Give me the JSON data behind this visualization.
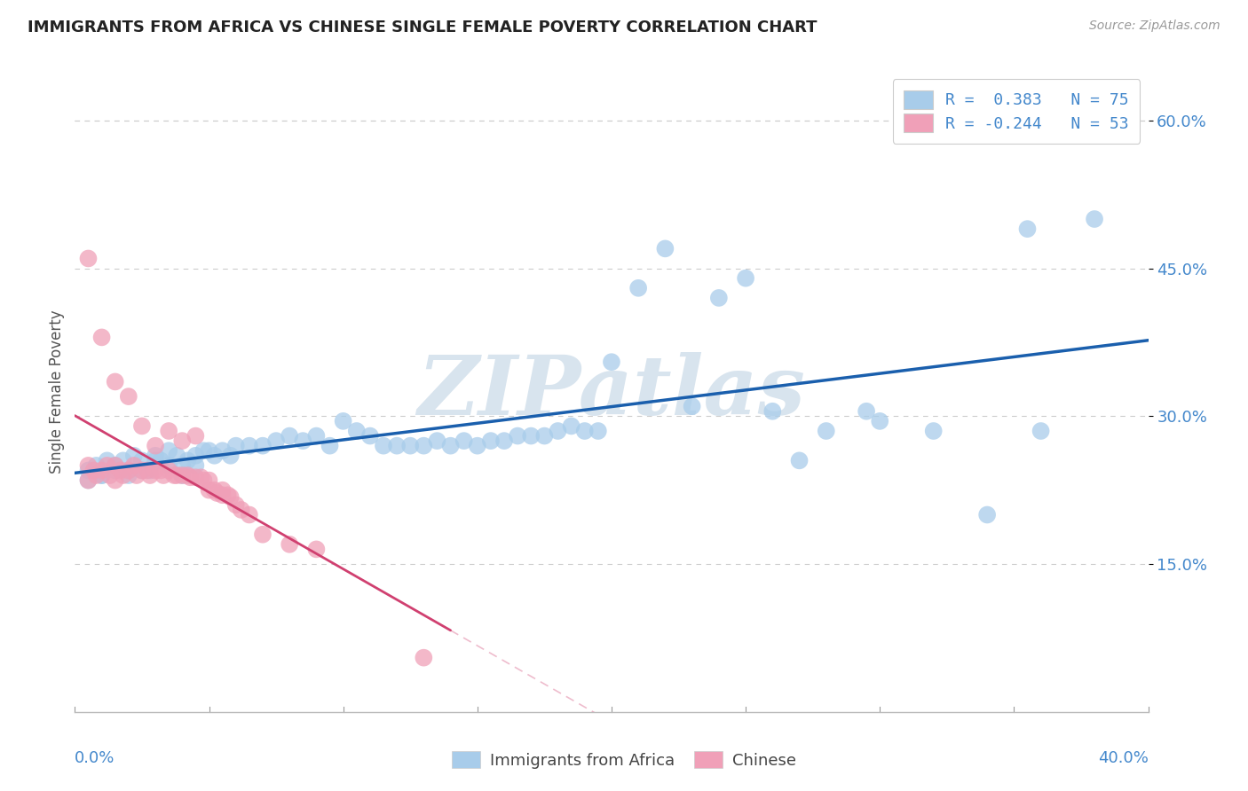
{
  "title": "IMMIGRANTS FROM AFRICA VS CHINESE SINGLE FEMALE POVERTY CORRELATION CHART",
  "source": "Source: ZipAtlas.com",
  "ylabel": "Single Female Poverty",
  "yticks": [
    "15.0%",
    "30.0%",
    "45.0%",
    "60.0%"
  ],
  "ytick_vals": [
    0.15,
    0.3,
    0.45,
    0.6
  ],
  "xlim": [
    0.0,
    0.4
  ],
  "ylim": [
    0.0,
    0.65
  ],
  "africa_R": 0.383,
  "africa_N": 75,
  "chinese_R": -0.244,
  "chinese_N": 53,
  "africa_color": "#A8CCEA",
  "chinese_color": "#F0A0B8",
  "africa_line_color": "#1A5FAD",
  "chinese_line_color": "#D04070",
  "watermark": "ZIPatlas",
  "watermark_color": "#D8E4EE",
  "background_color": "#FFFFFF",
  "grid_color": "#CCCCCC",
  "africa_scatter_x": [
    0.005,
    0.008,
    0.01,
    0.012,
    0.015,
    0.018,
    0.02,
    0.022,
    0.025,
    0.028,
    0.03,
    0.032,
    0.035,
    0.038,
    0.04,
    0.042,
    0.045,
    0.048,
    0.05,
    0.052,
    0.055,
    0.058,
    0.06,
    0.065,
    0.07,
    0.075,
    0.08,
    0.085,
    0.09,
    0.095,
    0.1,
    0.105,
    0.11,
    0.115,
    0.12,
    0.125,
    0.13,
    0.135,
    0.14,
    0.145,
    0.15,
    0.155,
    0.16,
    0.165,
    0.17,
    0.175,
    0.18,
    0.185,
    0.19,
    0.195,
    0.2,
    0.21,
    0.22,
    0.23,
    0.24,
    0.25,
    0.26,
    0.27,
    0.28,
    0.295,
    0.3,
    0.32,
    0.34,
    0.355,
    0.36,
    0.38,
    0.005,
    0.01,
    0.015,
    0.02,
    0.025,
    0.03,
    0.035,
    0.04,
    0.045
  ],
  "africa_scatter_y": [
    0.245,
    0.25,
    0.24,
    0.255,
    0.25,
    0.255,
    0.245,
    0.26,
    0.255,
    0.245,
    0.26,
    0.255,
    0.25,
    0.26,
    0.25,
    0.255,
    0.26,
    0.265,
    0.265,
    0.26,
    0.265,
    0.26,
    0.27,
    0.27,
    0.27,
    0.275,
    0.28,
    0.275,
    0.28,
    0.27,
    0.295,
    0.285,
    0.28,
    0.27,
    0.27,
    0.27,
    0.27,
    0.275,
    0.27,
    0.275,
    0.27,
    0.275,
    0.275,
    0.28,
    0.28,
    0.28,
    0.285,
    0.29,
    0.285,
    0.285,
    0.355,
    0.43,
    0.47,
    0.31,
    0.42,
    0.44,
    0.305,
    0.255,
    0.285,
    0.305,
    0.295,
    0.285,
    0.2,
    0.49,
    0.285,
    0.5,
    0.235,
    0.24,
    0.245,
    0.24,
    0.245,
    0.255,
    0.265,
    0.24,
    0.25
  ],
  "chinese_scatter_x": [
    0.005,
    0.005,
    0.005,
    0.007,
    0.008,
    0.01,
    0.01,
    0.012,
    0.013,
    0.015,
    0.015,
    0.015,
    0.017,
    0.018,
    0.02,
    0.02,
    0.022,
    0.023,
    0.025,
    0.025,
    0.027,
    0.028,
    0.03,
    0.03,
    0.032,
    0.033,
    0.035,
    0.035,
    0.037,
    0.038,
    0.04,
    0.04,
    0.042,
    0.043,
    0.045,
    0.045,
    0.047,
    0.048,
    0.05,
    0.05,
    0.052,
    0.053,
    0.055,
    0.055,
    0.057,
    0.058,
    0.06,
    0.062,
    0.065,
    0.07,
    0.08,
    0.09,
    0.13
  ],
  "chinese_scatter_y": [
    0.46,
    0.25,
    0.235,
    0.245,
    0.24,
    0.38,
    0.245,
    0.25,
    0.24,
    0.335,
    0.25,
    0.235,
    0.245,
    0.24,
    0.32,
    0.245,
    0.25,
    0.24,
    0.29,
    0.245,
    0.245,
    0.24,
    0.27,
    0.245,
    0.245,
    0.24,
    0.285,
    0.245,
    0.24,
    0.24,
    0.275,
    0.24,
    0.24,
    0.238,
    0.28,
    0.238,
    0.238,
    0.235,
    0.235,
    0.225,
    0.225,
    0.222,
    0.225,
    0.22,
    0.22,
    0.218,
    0.21,
    0.205,
    0.2,
    0.18,
    0.17,
    0.165,
    0.055
  ]
}
